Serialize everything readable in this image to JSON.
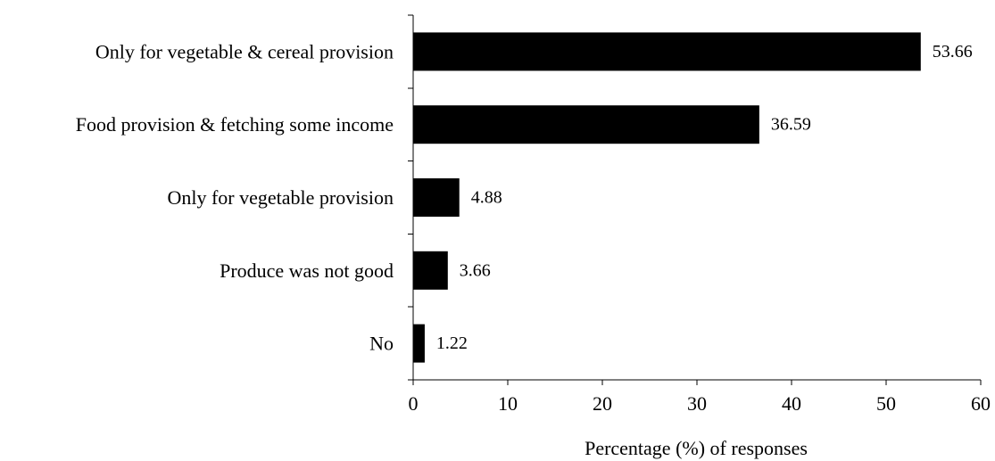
{
  "chart_data": {
    "type": "bar",
    "orientation": "horizontal",
    "categories": [
      "Only for vegetable & cereal provision",
      "Food provision & fetching some income",
      "Only for vegetable provision",
      "Produce was not good",
      "No"
    ],
    "values": [
      53.66,
      36.59,
      4.88,
      3.66,
      1.22
    ],
    "value_labels": [
      "53.66",
      "36.59",
      "4.88",
      "3.66",
      "1.22"
    ],
    "title": "",
    "xlabel": "Percentage (%) of responses",
    "ylabel": "",
    "xlim": [
      0,
      60
    ],
    "xticks": [
      0,
      10,
      20,
      30,
      40,
      50,
      60
    ],
    "xtick_labels": [
      "0",
      "10",
      "20",
      "30",
      "40",
      "50",
      "60"
    ],
    "bar_color": "#000000",
    "grid": false,
    "legend": "none"
  }
}
